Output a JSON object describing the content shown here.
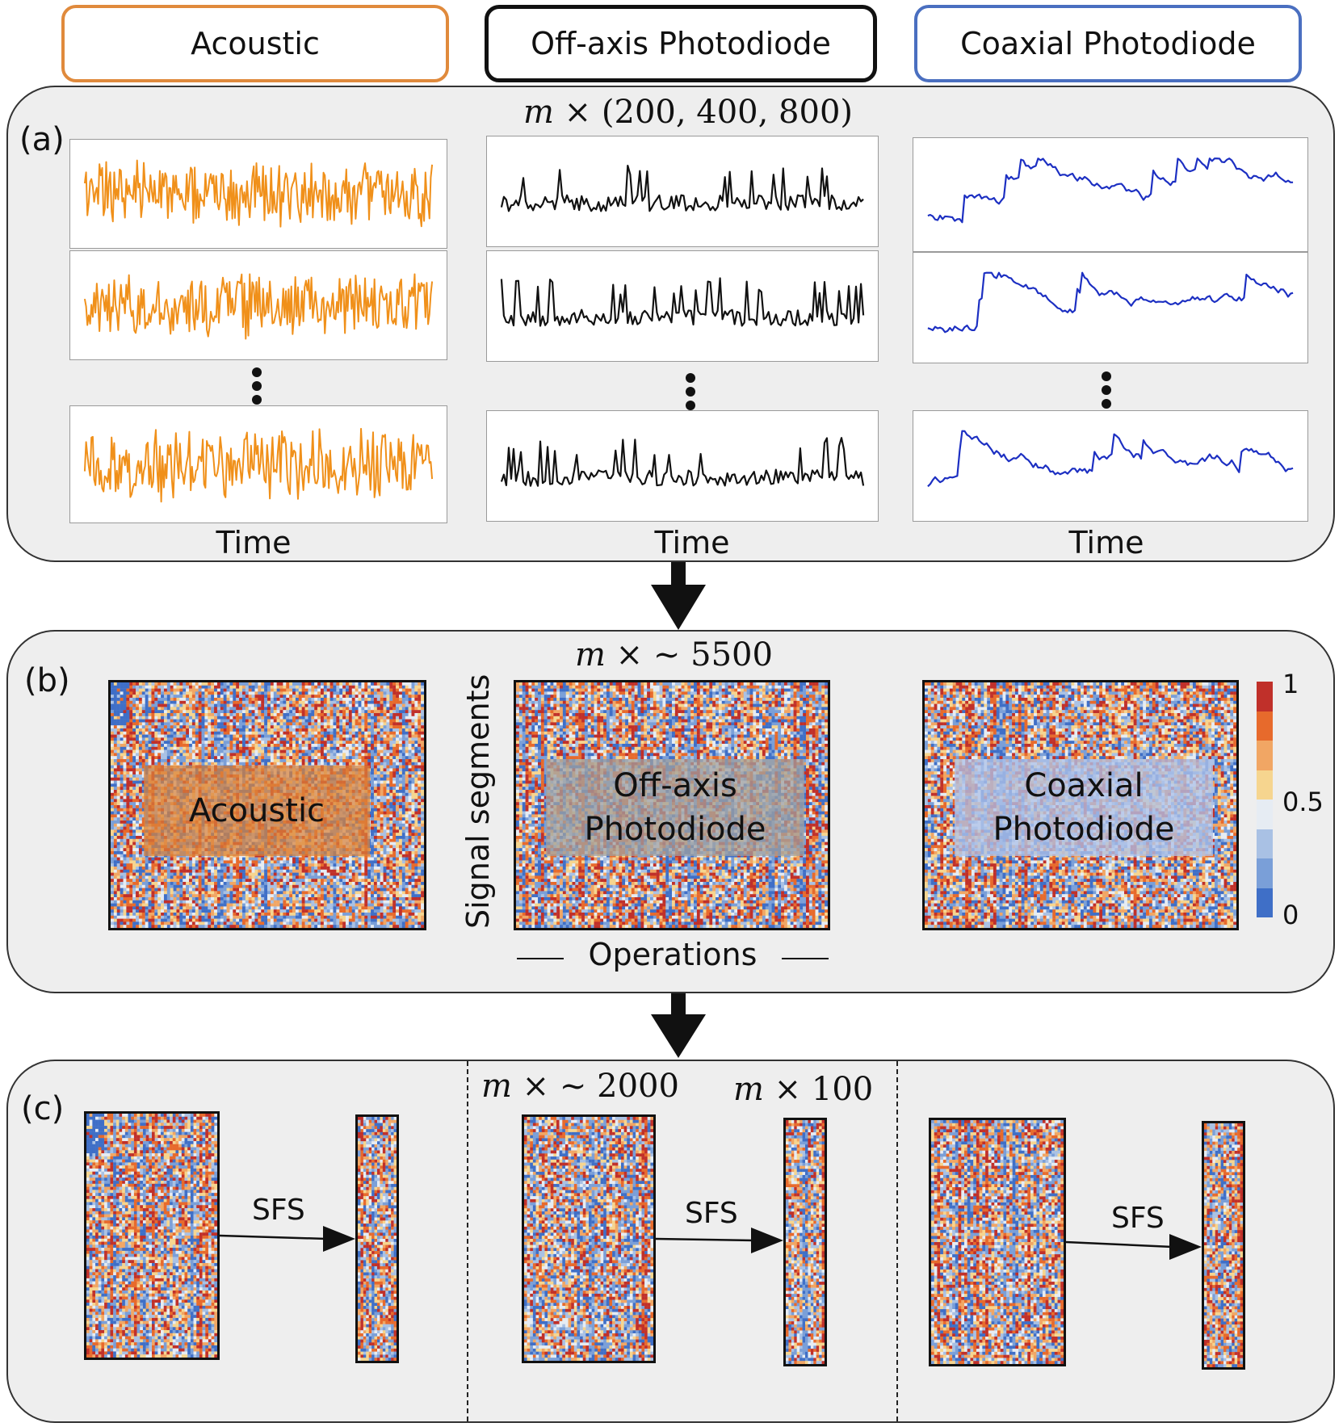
{
  "headers": [
    {
      "label": "Acoustic",
      "color": "#e08a3c"
    },
    {
      "label": "Off-axis Photodiode",
      "color": "#111111"
    },
    {
      "label": "Coaxial Photodiode",
      "color": "#4a6fc0"
    }
  ],
  "panel_a": {
    "label": "(a)",
    "dim_var": "m",
    "dim_text": "× (200, 400, 800)",
    "time_label": "Time",
    "signal_colors": [
      "#f0901a",
      "#111111",
      "#1c2fc2"
    ]
  },
  "panel_b": {
    "label": "(b)",
    "dim_var": "m",
    "dim_text": "× ~ 5500",
    "y_label": "Signal segments",
    "x_label": "Operations",
    "overlay_labels": [
      "Acoustic",
      "Off-axis Photodiode",
      "Coaxial Photodiode"
    ],
    "overlay_colors": [
      "#d9823a",
      "#9a9a9a",
      "#a9bde0"
    ],
    "colorbar": {
      "ticks": [
        "1",
        "0.5",
        "0"
      ],
      "colors": [
        "#c0302a",
        "#e76a2c",
        "#f1a664",
        "#f6d58f",
        "#e6ecf3",
        "#a9c1e4",
        "#7a9fd8",
        "#3f6fc7"
      ]
    }
  },
  "panel_c": {
    "label": "(c)",
    "dim1_var": "m",
    "dim1_text": "× ~ 2000",
    "dim2_var": "m",
    "dim2_text": "× 100",
    "sfs_label": "SFS"
  }
}
